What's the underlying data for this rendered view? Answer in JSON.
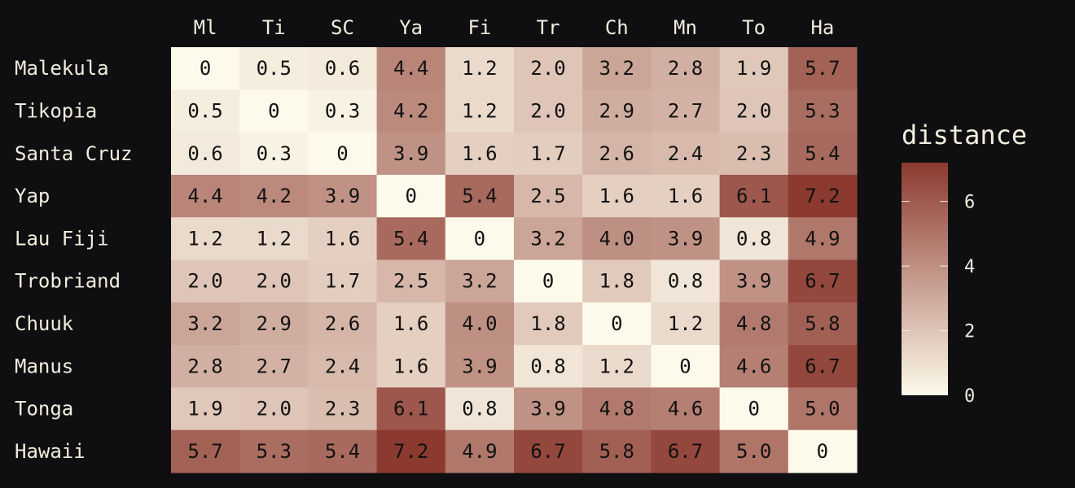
{
  "chart_data": {
    "type": "heatmap",
    "row_labels": [
      "Malekula",
      "Tikopia",
      "Santa Cruz",
      "Yap",
      "Lau Fiji",
      "Trobriand",
      "Chuuk",
      "Manus",
      "Tonga",
      "Hawaii"
    ],
    "col_labels": [
      "Ml",
      "Ti",
      "SC",
      "Ya",
      "Fi",
      "Tr",
      "Ch",
      "Mn",
      "To",
      "Ha"
    ],
    "values": [
      [
        "0",
        "0.5",
        "0.6",
        "4.4",
        "1.2",
        "2.0",
        "3.2",
        "2.8",
        "1.9",
        "5.7"
      ],
      [
        "0.5",
        "0",
        "0.3",
        "4.2",
        "1.2",
        "2.0",
        "2.9",
        "2.7",
        "2.0",
        "5.3"
      ],
      [
        "0.6",
        "0.3",
        "0",
        "3.9",
        "1.6",
        "1.7",
        "2.6",
        "2.4",
        "2.3",
        "5.4"
      ],
      [
        "4.4",
        "4.2",
        "3.9",
        "0",
        "5.4",
        "2.5",
        "1.6",
        "1.6",
        "6.1",
        "7.2"
      ],
      [
        "1.2",
        "1.2",
        "1.6",
        "5.4",
        "0",
        "3.2",
        "4.0",
        "3.9",
        "0.8",
        "4.9"
      ],
      [
        "2.0",
        "2.0",
        "1.7",
        "2.5",
        "3.2",
        "0",
        "1.8",
        "0.8",
        "3.9",
        "6.7"
      ],
      [
        "3.2",
        "2.9",
        "2.6",
        "1.6",
        "4.0",
        "1.8",
        "0",
        "1.2",
        "4.8",
        "5.8"
      ],
      [
        "2.8",
        "2.7",
        "2.4",
        "1.6",
        "3.9",
        "0.8",
        "1.2",
        "0",
        "4.6",
        "6.7"
      ],
      [
        "1.9",
        "2.0",
        "2.3",
        "6.1",
        "0.8",
        "3.9",
        "4.8",
        "4.6",
        "0",
        "5.0"
      ],
      [
        "5.7",
        "5.3",
        "5.4",
        "7.2",
        "4.9",
        "6.7",
        "5.8",
        "6.7",
        "5.0",
        "0"
      ]
    ],
    "colorbar": {
      "title": "distance",
      "range": [
        0,
        7.2
      ],
      "ticks": [
        "0",
        "2",
        "4",
        "6"
      ]
    },
    "colors": {
      "low": "#fdfaeb",
      "high": "#8c3a2f",
      "background": "#0f0f12",
      "label_text": "#f2eddd",
      "cell_text": "#111111"
    },
    "grid": false,
    "legend_position": "right"
  }
}
